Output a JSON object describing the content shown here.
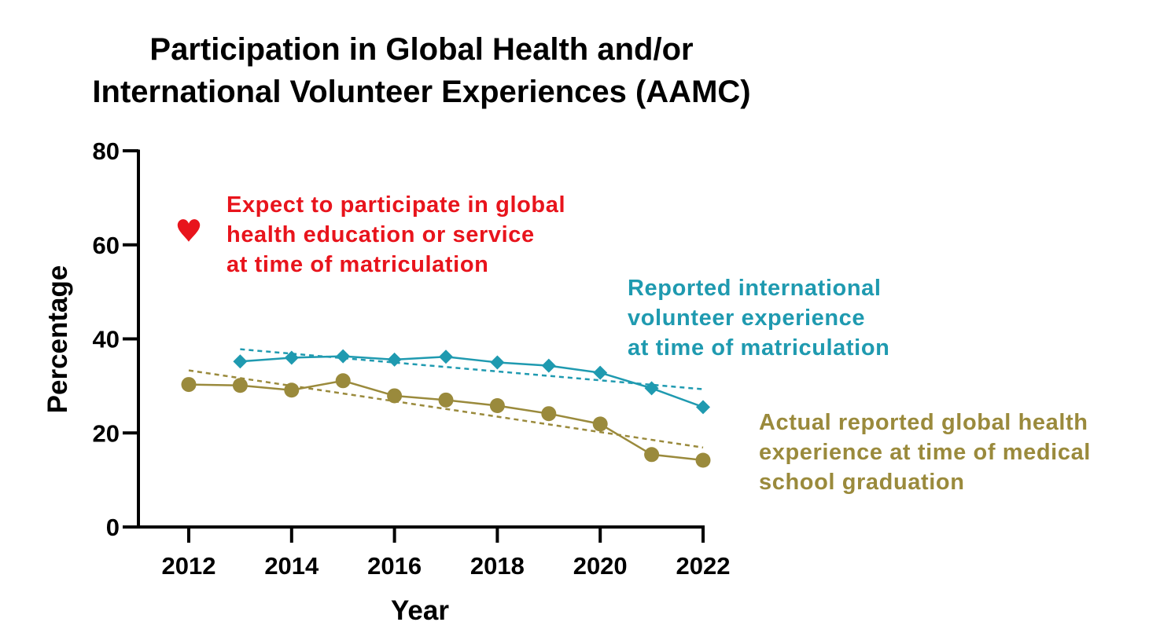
{
  "chart_data": {
    "type": "line",
    "title_lines": [
      "Participation in Global Health and/or",
      "International Volunteer Experiences (AAMC)"
    ],
    "xlabel": "Year",
    "ylabel": "Percentage",
    "xlim": [
      2011,
      2022
    ],
    "ylim": [
      0,
      80
    ],
    "xticks": [
      2012,
      2014,
      2016,
      2018,
      2020,
      2022
    ],
    "yticks": [
      0,
      20,
      40,
      60,
      80
    ],
    "grid": false,
    "series": [
      {
        "label_lines": [
          "Expect to participate in global",
          "health education or service",
          "at time of matriculation"
        ],
        "color": "#e8141c",
        "marker": "heart",
        "line": false,
        "x": [
          2012
        ],
        "y": [
          63
        ]
      },
      {
        "label_lines": [
          "Reported international",
          "volunteer experience",
          "at time of matriculation"
        ],
        "color": "#1f9ab0",
        "marker": "diamond",
        "line": true,
        "x": [
          2013,
          2014,
          2015,
          2016,
          2017,
          2018,
          2019,
          2020,
          2021,
          2022
        ],
        "y": [
          35.2,
          36.0,
          36.3,
          35.6,
          36.2,
          35.0,
          34.3,
          32.8,
          29.5,
          25.5
        ],
        "trend": {
          "x": [
            2013,
            2022
          ],
          "y": [
            37.8,
            29.3
          ]
        }
      },
      {
        "label_lines": [
          "Actual reported global health",
          "experience at time of medical",
          "school graduation"
        ],
        "color": "#9a8a3c",
        "marker": "circle",
        "line": true,
        "x": [
          2012,
          2013,
          2014,
          2015,
          2016,
          2017,
          2018,
          2019,
          2020,
          2021,
          2022
        ],
        "y": [
          30.3,
          30.1,
          29.1,
          31.1,
          27.9,
          27.0,
          25.8,
          24.1,
          21.9,
          15.4,
          14.2
        ],
        "trend": {
          "x": [
            2012,
            2022
          ],
          "y": [
            33.3,
            16.9
          ]
        }
      }
    ]
  }
}
